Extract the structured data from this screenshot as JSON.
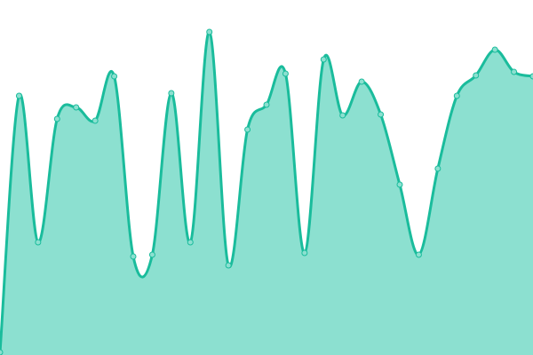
{
  "chart_data": {
    "type": "area",
    "x": [
      0,
      1,
      2,
      3,
      4,
      5,
      6,
      7,
      8,
      9,
      10,
      11,
      12,
      13,
      14,
      15,
      16,
      17,
      18,
      19,
      20,
      21,
      22,
      23,
      24,
      25,
      26,
      27,
      28
    ],
    "values": [
      3,
      292,
      127,
      266,
      279,
      264,
      314,
      111,
      113,
      295,
      127,
      364,
      101,
      254,
      282,
      317,
      115,
      333,
      270,
      308,
      271,
      192,
      113,
      210,
      292,
      315,
      344,
      319,
      314
    ],
    "ylim": [
      0,
      400
    ],
    "grid": false,
    "legend": "none",
    "colors": {
      "line": "#1abc9c",
      "fill": "#8ce0d0",
      "point_fill": "#8ce0d0",
      "point_stroke": "#1abc9c"
    }
  }
}
